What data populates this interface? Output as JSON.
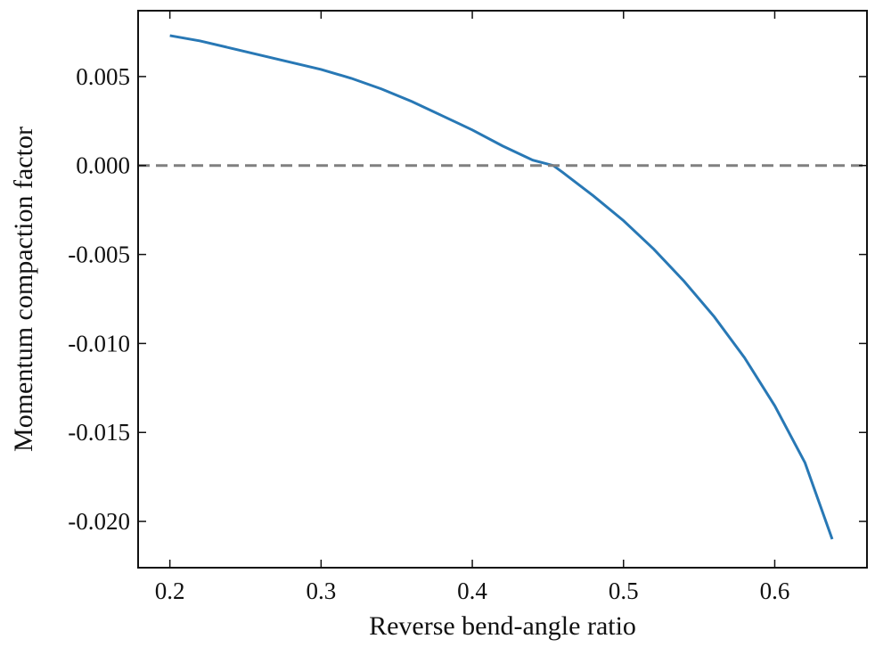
{
  "chart_data": {
    "type": "line",
    "title": "",
    "xlabel": "Reverse bend-angle ratio",
    "ylabel": "Momentum compaction factor",
    "xlim": [
      0.179,
      0.661
    ],
    "ylim": [
      -0.0226,
      0.0087
    ],
    "grid": false,
    "x_ticks": [
      {
        "value": 0.2,
        "label": "0.2"
      },
      {
        "value": 0.3,
        "label": "0.3"
      },
      {
        "value": 0.4,
        "label": "0.4"
      },
      {
        "value": 0.5,
        "label": "0.5"
      },
      {
        "value": 0.6,
        "label": "0.6"
      }
    ],
    "y_ticks": [
      {
        "value": 0.005,
        "label": "0.005"
      },
      {
        "value": 0.0,
        "label": "0.000"
      },
      {
        "value": -0.005,
        "label": "-0.005"
      },
      {
        "value": -0.01,
        "label": "-0.010"
      },
      {
        "value": -0.015,
        "label": "-0.015"
      },
      {
        "value": -0.02,
        "label": "-0.020"
      }
    ],
    "series": [
      {
        "name": "momentum compaction factor",
        "color": "#2878b5",
        "style": "solid",
        "x": [
          0.2,
          0.22,
          0.24,
          0.26,
          0.28,
          0.3,
          0.32,
          0.34,
          0.36,
          0.38,
          0.4,
          0.42,
          0.44,
          0.4535,
          0.46,
          0.48,
          0.5,
          0.52,
          0.54,
          0.56,
          0.58,
          0.6,
          0.62,
          0.638
        ],
        "y": [
          0.0073,
          0.007,
          0.0066,
          0.0062,
          0.0058,
          0.0054,
          0.0049,
          0.0043,
          0.0036,
          0.0028,
          0.002,
          0.0011,
          0.0003,
          0.0,
          -0.0004,
          -0.0017,
          -0.0031,
          -0.0047,
          -0.0065,
          -0.0085,
          -0.0108,
          -0.0135,
          -0.0167,
          -0.021
        ]
      },
      {
        "name": "zero reference",
        "color": "#808080",
        "style": "dashed",
        "x": [
          0.179,
          0.661
        ],
        "y": [
          0.0,
          0.0
        ]
      }
    ]
  }
}
